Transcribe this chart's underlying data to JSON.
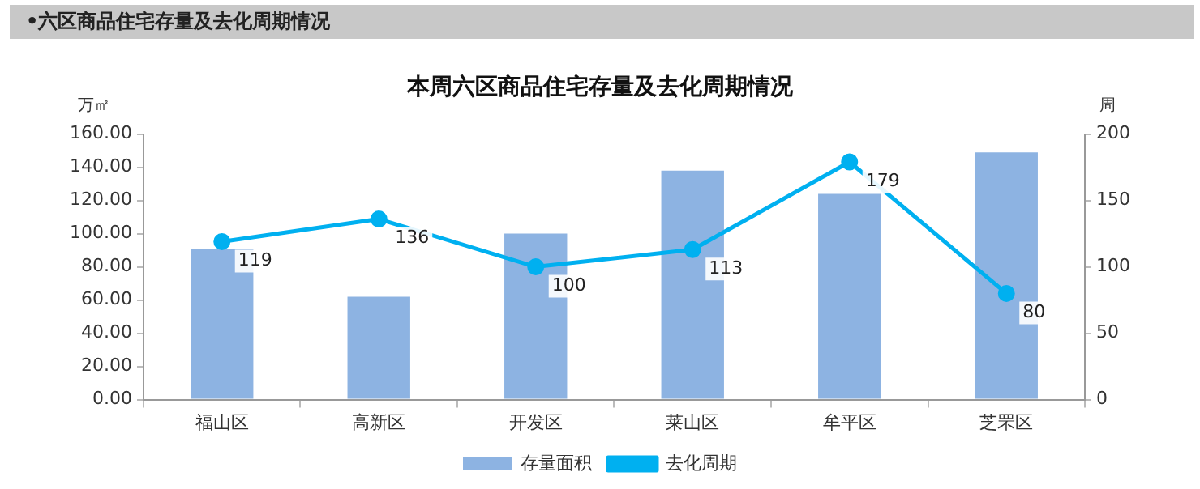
{
  "chart_data": {
    "type": "bar",
    "title": "本周六区商品住宅存量及去化周期情况",
    "subtitle": "•六区商品住宅存量及去化周期情况",
    "ylabel": "万㎡",
    "y2label": "周",
    "categories": [
      "福山区",
      "高新区",
      "开发区",
      "莱山区",
      "牟平区",
      "芝罘区"
    ],
    "series": [
      {
        "name": "存量面积",
        "color": "#8db3e2",
        "values": [
          91,
          62,
          100,
          138,
          124,
          149
        ]
      },
      {
        "name": "去化周期",
        "type": "line",
        "axis": "y2",
        "color": "#00b0f0",
        "marker": "circle",
        "values": [
          119,
          136,
          100,
          113,
          179,
          80
        ],
        "value_labels": [
          "119",
          "136",
          "100",
          "113",
          "179",
          "80"
        ]
      }
    ],
    "ylim": [
      0,
      160
    ],
    "yticks": [
      {
        "value": 0,
        "label": "0.00"
      },
      {
        "value": 20,
        "label": "20.00"
      },
      {
        "value": 40,
        "label": "40.00"
      },
      {
        "value": 60,
        "label": "60.00"
      },
      {
        "value": 80,
        "label": "80.00"
      },
      {
        "value": 100,
        "label": "100.00"
      },
      {
        "value": 120,
        "label": "120.00"
      },
      {
        "value": 140,
        "label": "140.00"
      },
      {
        "value": 160,
        "label": "160.00"
      }
    ],
    "y2lim": [
      0,
      200
    ],
    "y2ticks": [
      0,
      50,
      100,
      150,
      200
    ],
    "grid": false,
    "legend": "bottom"
  }
}
